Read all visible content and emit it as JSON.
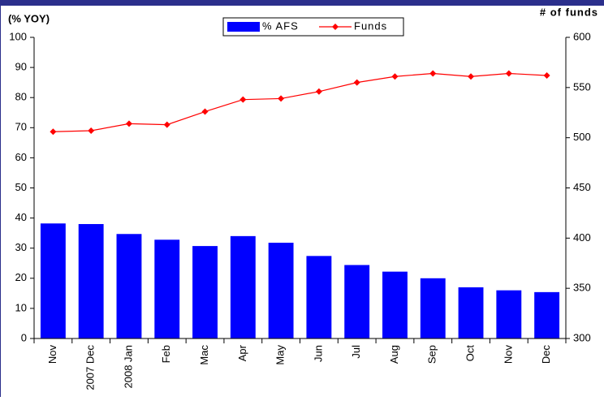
{
  "chart_data": {
    "type": "bar_line",
    "y_title": "(% YOY)",
    "y2_title": "# of funds",
    "categories": [
      "Nov",
      "2007 Dec",
      "2008 Jan",
      "Feb",
      "Mac",
      "Apr",
      "May",
      "Jun",
      "Jul",
      "Aug",
      "Sep",
      "Oct",
      "Nov",
      "Dec"
    ],
    "series": [
      {
        "name": "% AFS",
        "type": "bar",
        "color": "#0000ff",
        "values": [
          38.2,
          38,
          34.7,
          32.8,
          30.7,
          34,
          31.8,
          27.4,
          24.4,
          22.2,
          20,
          17,
          16,
          15.4
        ]
      },
      {
        "name": "Funds",
        "type": "line",
        "axis": "y2",
        "color": "#ff0000",
        "values": [
          506,
          507,
          514,
          513,
          526,
          538,
          539,
          546,
          555,
          561,
          564,
          561,
          564,
          562
        ]
      }
    ],
    "ylim": [
      0,
      100
    ],
    "yticks": [
      0,
      10,
      20,
      30,
      40,
      50,
      60,
      70,
      80,
      90,
      100
    ],
    "y2lim": [
      300,
      600
    ],
    "y2ticks": [
      300,
      350,
      400,
      450,
      500,
      550,
      600
    ],
    "legend": "top"
  }
}
